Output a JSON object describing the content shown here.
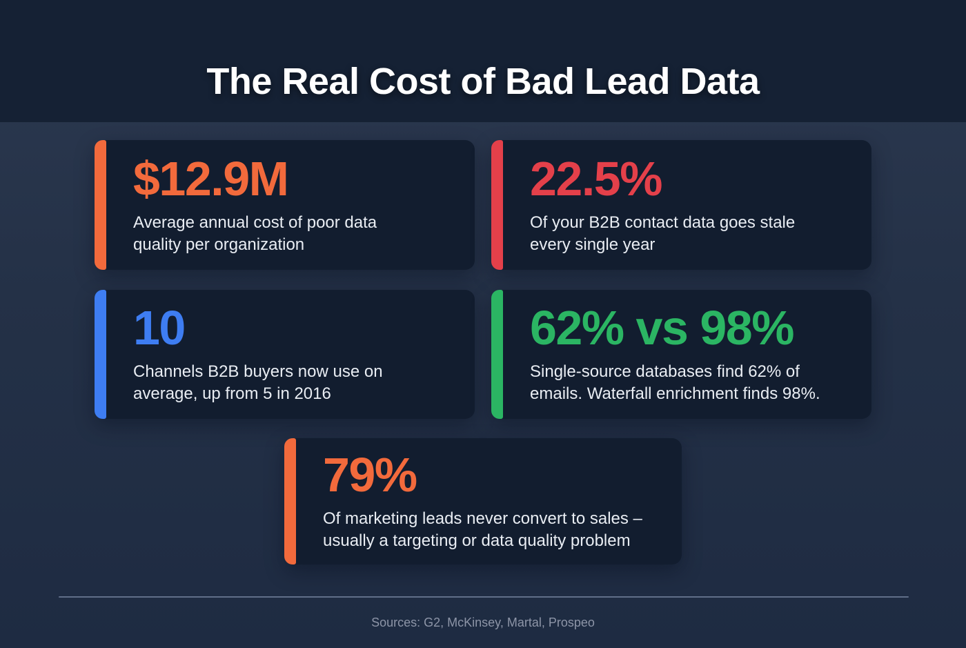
{
  "title": "The Real Cost of Bad Lead Data",
  "cards": [
    {
      "value": "$12.9M",
      "description": "Average annual cost of poor data quality per organization",
      "accent": "#F26A3C"
    },
    {
      "value": "22.5%",
      "description": "Of your B2B contact data goes stale every single year",
      "accent": "#E4404A"
    },
    {
      "value": "10",
      "description": "Channels B2B buyers now use on average, up from 5 in 2016",
      "accent": "#3E7DF2"
    },
    {
      "value": "62% vs 98%",
      "description": "Single-source databases find 62% of emails. Waterfall enrichment finds 98%.",
      "accent": "#2BB563"
    },
    {
      "value": "79%",
      "description": "Of marketing leads never convert to sales – usually a targeting or data quality problem",
      "accent": "#F26A3C"
    }
  ],
  "footer": {
    "sources": "Sources: G2, McKinsey, Martal, Prospeo"
  },
  "colors": {
    "header_bg": "#152134",
    "page_bg_top": "#2C3950",
    "page_bg_bottom": "#1E2B42",
    "card_bg": "#121D2F",
    "title_text": "#FFFFFF",
    "description_text": "#E9EDF3",
    "sources_text": "#8D95A7",
    "divider": "#97A8C3",
    "accent_orange": "#F26A3C",
    "accent_red": "#E4404A",
    "accent_blue": "#3E7DF2",
    "accent_green": "#2BB563"
  },
  "chart_data": {
    "type": "table",
    "title": "The Real Cost of Bad Lead Data",
    "stats": [
      {
        "value": "$12.9M",
        "label": "Average annual cost of poor data quality per organization"
      },
      {
        "value": "22.5%",
        "label": "Of your B2B contact data goes stale every single year"
      },
      {
        "value": "10",
        "label": "Channels B2B buyers now use on average, up from 5 in 2016"
      },
      {
        "value": "62% vs 98%",
        "label": "Single-source databases find 62% of emails. Waterfall enrichment finds 98%."
      },
      {
        "value": "79%",
        "label": "Of marketing leads never convert to sales – usually a targeting or data quality problem"
      }
    ],
    "sources": [
      "G2",
      "McKinsey",
      "Martal",
      "Prospeo"
    ]
  }
}
